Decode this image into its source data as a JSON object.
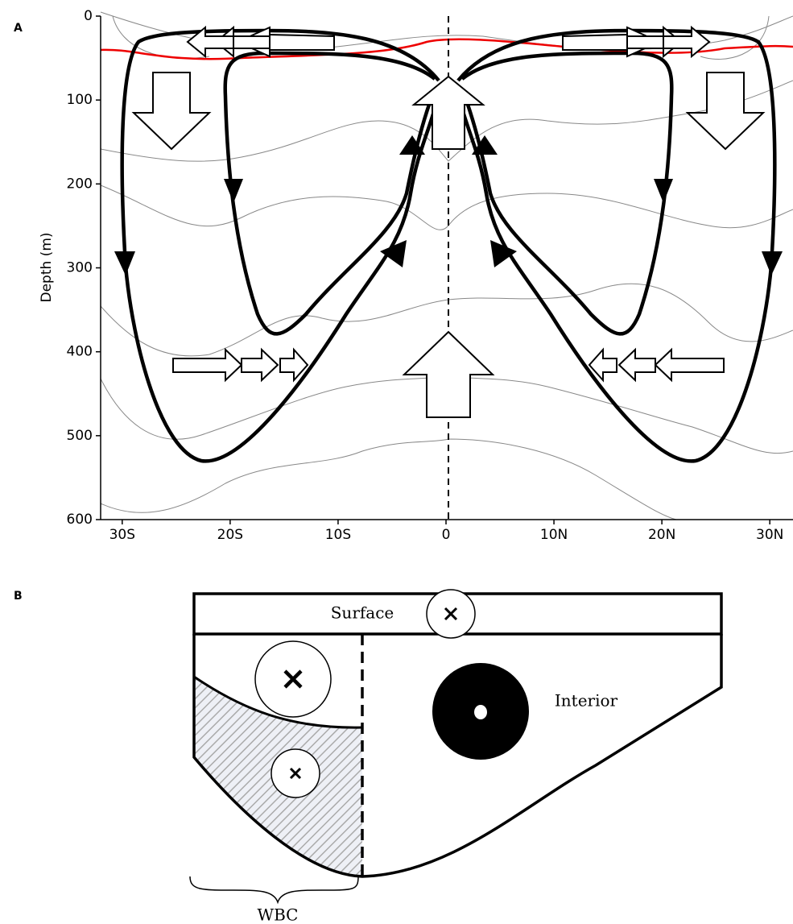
{
  "panel_a": {
    "label": "A",
    "ylabel": "Depth (m)",
    "ylim": [
      0,
      600
    ],
    "yticks": [
      0,
      100,
      200,
      300,
      400,
      500,
      600
    ],
    "xlim": [
      -32,
      32
    ],
    "xticks": [
      {
        "value": -30,
        "label": "30S"
      },
      {
        "value": -20,
        "label": "20S"
      },
      {
        "value": -10,
        "label": "10S"
      },
      {
        "value": 0,
        "label": "0"
      },
      {
        "value": 10,
        "label": "10N"
      },
      {
        "value": 20,
        "label": "20N"
      },
      {
        "value": 30,
        "label": "30N"
      }
    ]
  },
  "panel_b": {
    "label": "B",
    "surface": "Surface",
    "interior": "Interior",
    "wbc": "WBC"
  }
}
